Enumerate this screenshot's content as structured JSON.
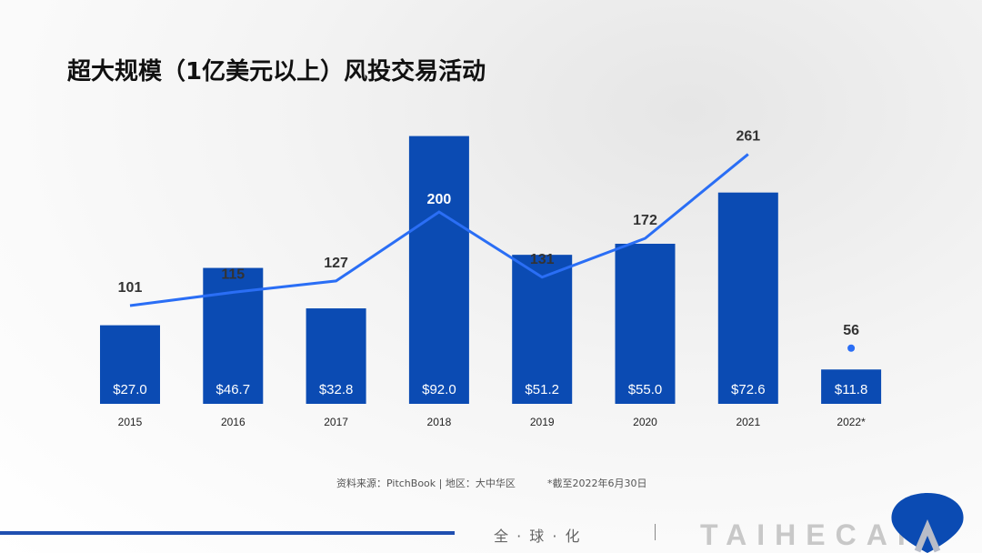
{
  "title": "超大规模（1亿美元以上）风投交易活动",
  "chart_data": {
    "type": "bar+line",
    "title": "超大规模（1亿美元以上）风投交易活动",
    "categories": [
      "2015",
      "2016",
      "2017",
      "2018",
      "2019",
      "2020",
      "2021",
      "2022*"
    ],
    "series": [
      {
        "type": "bar",
        "values": [
          27.0,
          46.7,
          32.8,
          92.0,
          51.2,
          55.0,
          72.6,
          11.8
        ],
        "labels": [
          "$27.0",
          "$46.7",
          "$32.8",
          "$92.0",
          "$51.2",
          "$55.0",
          "$72.6",
          "$11.8"
        ],
        "color": "#0b4bb3"
      },
      {
        "type": "line",
        "values": [
          101,
          115,
          127,
          200,
          131,
          172,
          261,
          56
        ],
        "labels": [
          "101",
          "115",
          "127",
          "200",
          "131",
          "172",
          "261",
          "56"
        ],
        "color": "#2a6ef5",
        "note": "2022* shown as separate point"
      }
    ],
    "grid": false,
    "legend": "none"
  },
  "footer": {
    "source": "资料来源：PitchBook | 地区：大中华区",
    "note": "*截至2022年6月30日",
    "slogan": "全 · 球 · 化",
    "logo": "TAIHECAP"
  },
  "colors": {
    "bar": "#0b4bb3",
    "line": "#2a6ef5",
    "accent": "#1f4fb0"
  }
}
